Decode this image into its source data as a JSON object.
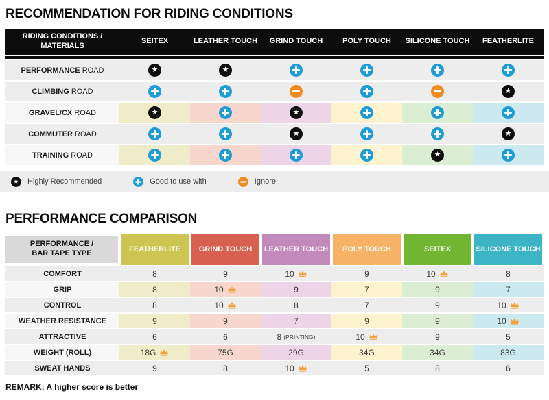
{
  "colors": {
    "star_badge": "#0e0e0e",
    "plus_badge": "#1e9cd7",
    "minus_badge": "#ef8c21",
    "crown": "#f5a03a",
    "row_gray": "#ededed",
    "row_label_tinted": "#f7f7f7",
    "corner_gray": "#d9d9d9",
    "tints": [
      "#efecca",
      "#f7d7cd",
      "#eed4e7",
      "#fdf3cf",
      "#dbeed3",
      "#cde9f0"
    ],
    "header_colors": [
      "#cdc551",
      "#d8604f",
      "#c289bb",
      "#f6b365",
      "#72b532",
      "#3eb5c6"
    ]
  },
  "chart_data": [
    {
      "type": "table",
      "title": "RECOMMENDATION FOR RIDING CONDITIONS",
      "corner_label": "RIDING CONDITIONS / MATERIALS",
      "columns": [
        "SEITEX",
        "LEATHER TOUCH",
        "GRIND TOUCH",
        "POLY TOUCH",
        "SILICONE TOUCH",
        "FEATHERLITE"
      ],
      "rows": [
        {
          "condition": "PERFORMANCE",
          "suffix": "ROAD",
          "tinted": false,
          "ratings": [
            "star",
            "star",
            "plus",
            "plus",
            "plus",
            "plus"
          ]
        },
        {
          "condition": "CLIMBING",
          "suffix": "ROAD",
          "tinted": false,
          "ratings": [
            "plus",
            "plus",
            "minus",
            "plus",
            "minus",
            "star"
          ]
        },
        {
          "condition": "GRAVEL/CX",
          "suffix": "ROAD",
          "tinted": true,
          "ratings": [
            "star",
            "plus",
            "star",
            "plus",
            "plus",
            "plus"
          ]
        },
        {
          "condition": "COMMUTER",
          "suffix": "ROAD",
          "tinted": false,
          "ratings": [
            "plus",
            "plus",
            "star",
            "plus",
            "plus",
            "star"
          ]
        },
        {
          "condition": "TRAINING",
          "suffix": "ROAD",
          "tinted": true,
          "ratings": [
            "plus",
            "plus",
            "plus",
            "plus",
            "star",
            "plus"
          ]
        }
      ],
      "legend": [
        {
          "icon": "star",
          "label": "Highly Recommended"
        },
        {
          "icon": "plus",
          "label": "Good to use with"
        },
        {
          "icon": "minus",
          "label": "Ignore"
        }
      ]
    },
    {
      "type": "table",
      "title": "PERFORMANCE COMPARISON",
      "corner_label": "PERFORMANCE / BAR TAPE TYPE",
      "columns": [
        "FEATHERLITE",
        "GRIND TOUCH",
        "LEATHER TOUCH",
        "POLY TOUCH",
        "SEITEX",
        "SILICONE TOUCH"
      ],
      "rows": [
        {
          "metric": "COMFORT",
          "tinted": false,
          "cells": [
            {
              "value": "8"
            },
            {
              "value": "9"
            },
            {
              "value": "10",
              "crown": true
            },
            {
              "value": "9"
            },
            {
              "value": "10",
              "crown": true
            },
            {
              "value": "8"
            }
          ]
        },
        {
          "metric": "GRIP",
          "tinted": true,
          "cells": [
            {
              "value": "8"
            },
            {
              "value": "10",
              "crown": true
            },
            {
              "value": "9"
            },
            {
              "value": "7"
            },
            {
              "value": "9"
            },
            {
              "value": "7"
            }
          ]
        },
        {
          "metric": "CONTROL",
          "tinted": false,
          "cells": [
            {
              "value": "8"
            },
            {
              "value": "10",
              "crown": true
            },
            {
              "value": "8"
            },
            {
              "value": "7"
            },
            {
              "value": "9"
            },
            {
              "value": "10",
              "crown": true
            }
          ]
        },
        {
          "metric": "WEATHER RESISTANCE",
          "tinted": true,
          "cells": [
            {
              "value": "9"
            },
            {
              "value": "9"
            },
            {
              "value": "7"
            },
            {
              "value": "9"
            },
            {
              "value": "9"
            },
            {
              "value": "10",
              "crown": true
            }
          ]
        },
        {
          "metric": "ATTRACTIVE",
          "tinted": false,
          "cells": [
            {
              "value": "6"
            },
            {
              "value": "6"
            },
            {
              "value": "8",
              "note": "(PRINTING)"
            },
            {
              "value": "10",
              "crown": true
            },
            {
              "value": "9"
            },
            {
              "value": "5"
            }
          ]
        },
        {
          "metric": "WEIGHT (ROLL)",
          "tinted": true,
          "cells": [
            {
              "value": "18G",
              "crown": true
            },
            {
              "value": "75G"
            },
            {
              "value": "29G"
            },
            {
              "value": "34G"
            },
            {
              "value": "34G"
            },
            {
              "value": "83G"
            }
          ]
        },
        {
          "metric": "SWEAT HANDS",
          "tinted": false,
          "cells": [
            {
              "value": "9"
            },
            {
              "value": "8"
            },
            {
              "value": "10",
              "crown": true
            },
            {
              "value": "5"
            },
            {
              "value": "8"
            },
            {
              "value": "6"
            }
          ]
        }
      ],
      "remark": "REMARK: A higher score is better"
    }
  ]
}
